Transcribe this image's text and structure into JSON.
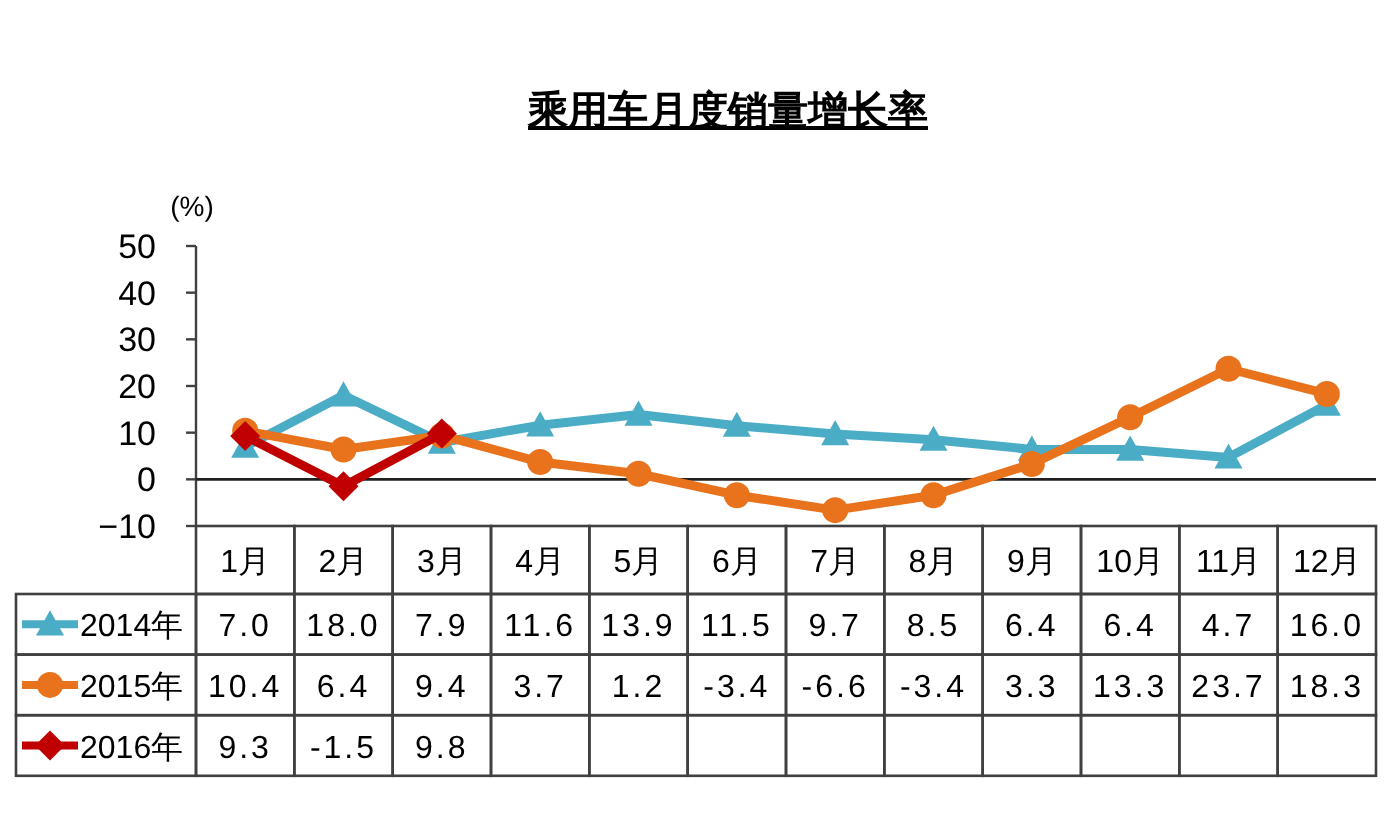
{
  "chart_data": {
    "type": "line",
    "title": "乘用车月度销量增长率",
    "ylabel": "(%)",
    "categories": [
      "1月",
      "2月",
      "3月",
      "4月",
      "5月",
      "6月",
      "7月",
      "8月",
      "9月",
      "10月",
      "11月",
      "12月"
    ],
    "series": [
      {
        "name": "2014年",
        "color": "#4bacc6",
        "marker": "triangle",
        "values": [
          7.0,
          18.0,
          7.9,
          11.6,
          13.9,
          11.5,
          9.7,
          8.5,
          6.4,
          6.4,
          4.7,
          16.0
        ],
        "value_labels": [
          "7.0",
          "18.0",
          "7.9",
          "11.6",
          "13.9",
          "11.5",
          "9.7",
          "8.5",
          "6.4",
          "6.4",
          "4.7",
          "16.0"
        ]
      },
      {
        "name": "2015年",
        "color": "#e8731c",
        "marker": "circle",
        "values": [
          10.4,
          6.4,
          9.4,
          3.7,
          1.2,
          -3.4,
          -6.6,
          -3.4,
          3.3,
          13.3,
          23.7,
          18.3
        ],
        "value_labels": [
          "10.4",
          "6.4",
          "9.4",
          "3.7",
          "1.2",
          "-3.4",
          "-6.6",
          "-3.4",
          "3.3",
          "13.3",
          "23.7",
          "18.3"
        ]
      },
      {
        "name": "2016年",
        "color": "#c00000",
        "marker": "diamond",
        "values": [
          9.3,
          -1.5,
          9.8,
          null,
          null,
          null,
          null,
          null,
          null,
          null,
          null,
          null
        ],
        "value_labels": [
          "9.3",
          "-1.5",
          "9.8",
          null,
          null,
          null,
          null,
          null,
          null,
          null,
          null,
          null
        ]
      }
    ],
    "ylim": [
      -10,
      50
    ],
    "yticks": [
      -10,
      0,
      10,
      20,
      30,
      40,
      50
    ],
    "legend": "bottom left",
    "line_style": "solid"
  }
}
